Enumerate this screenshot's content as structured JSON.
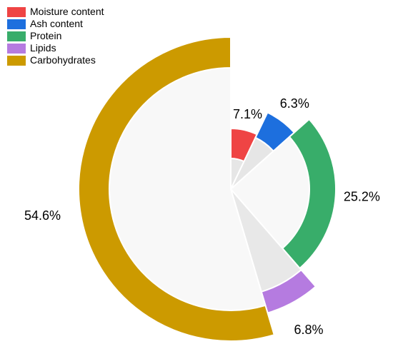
{
  "chart_data": {
    "type": "pie",
    "categories": [
      "Moisture content",
      "Ash content",
      "Protein",
      "Lipids",
      "Carbohydrates"
    ],
    "values": [
      7.1,
      6.3,
      25.2,
      6.8,
      54.6
    ],
    "value_labels": [
      "7.1%",
      "6.3%",
      "25.2%",
      "6.8%",
      "54.6%"
    ],
    "colors": [
      "#ef4444",
      "#1d6fde",
      "#38ad6a",
      "#b57be0",
      "#cc9a00"
    ],
    "legend": "top-left"
  }
}
